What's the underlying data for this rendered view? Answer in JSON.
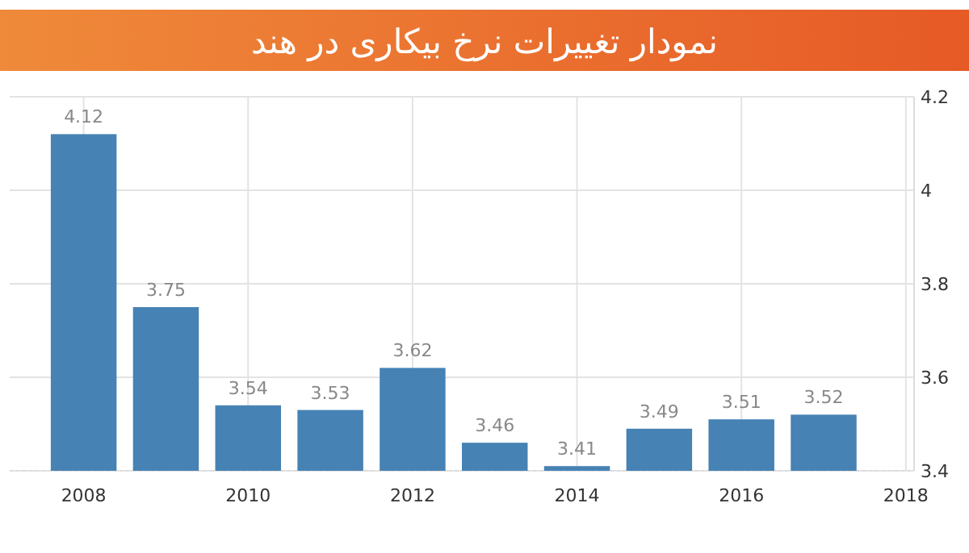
{
  "chart_data": {
    "type": "bar",
    "title": "نمودار تغییرات نرخ بیکاری در هند",
    "x": [
      2008,
      2009,
      2010,
      2011,
      2012,
      2013,
      2014,
      2015,
      2016,
      2017
    ],
    "series": [
      {
        "color": "#4682b4",
        "values": [
          4.12,
          3.75,
          3.54,
          3.53,
          3.62,
          3.46,
          3.41,
          3.49,
          3.51,
          3.52
        ]
      }
    ],
    "data_labels": true,
    "xlim": [
      2007.1,
      2018.1
    ],
    "xticks": [
      2008,
      2010,
      2012,
      2014,
      2016,
      2018
    ],
    "ylim": [
      3.4,
      4.2
    ],
    "yticks": [
      3.4,
      3.6,
      3.8,
      4,
      4.2
    ],
    "grid": true
  }
}
